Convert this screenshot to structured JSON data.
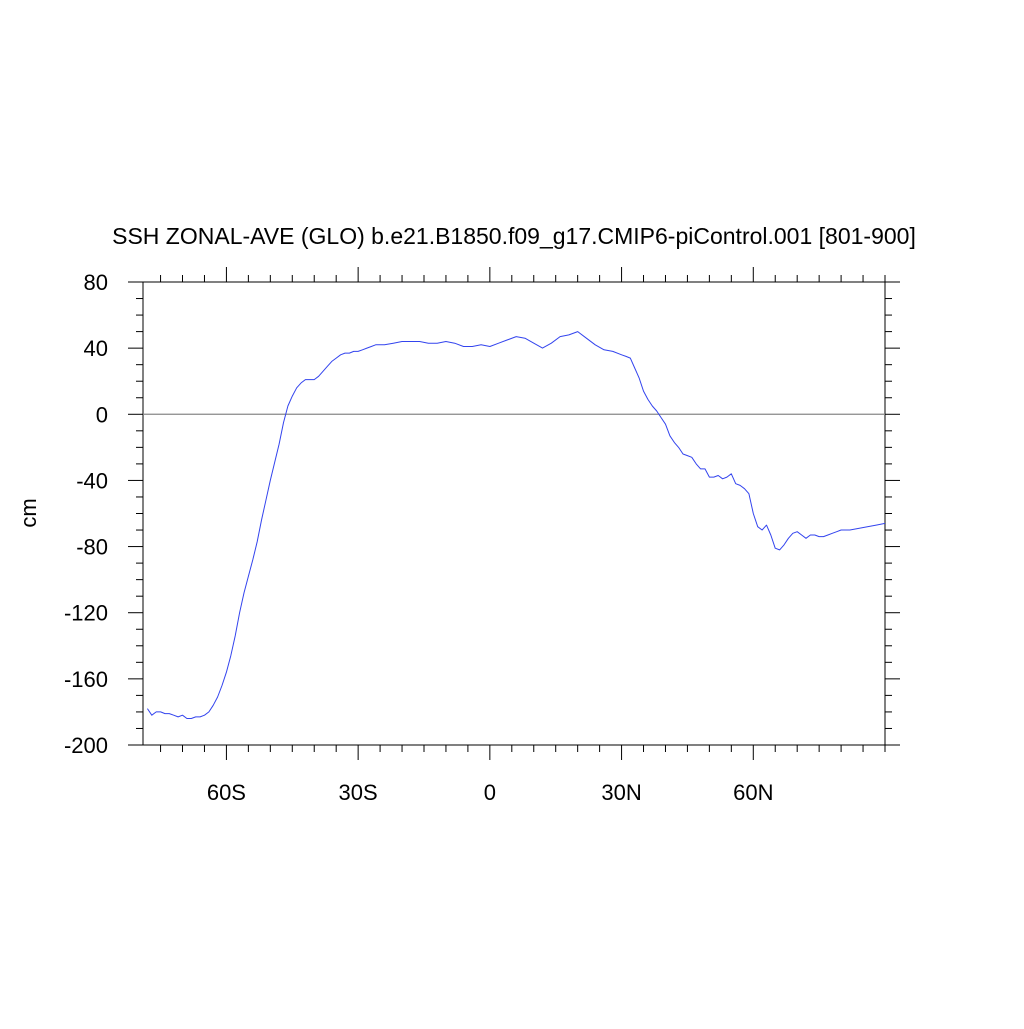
{
  "chart_data": {
    "type": "line",
    "title": "SSH ZONAL-AVE (GLO) b.e21.B1850.f09_g17.CMIP6-piControl.001 [801-900]",
    "xlabel": "",
    "ylabel": "cm",
    "xlim": [
      -79,
      90
    ],
    "ylim": [
      -200,
      80
    ],
    "x_ticks": [
      {
        "value": -60,
        "label": "60S"
      },
      {
        "value": -30,
        "label": "30S"
      },
      {
        "value": 0,
        "label": "0"
      },
      {
        "value": 30,
        "label": "30N"
      },
      {
        "value": 60,
        "label": "60N"
      }
    ],
    "y_ticks": [
      {
        "value": 80,
        "label": "80"
      },
      {
        "value": 40,
        "label": "40"
      },
      {
        "value": 0,
        "label": "0"
      },
      {
        "value": -40,
        "label": "-40"
      },
      {
        "value": -80,
        "label": "-80"
      },
      {
        "value": -120,
        "label": "-120"
      },
      {
        "value": -160,
        "label": "-160"
      },
      {
        "value": -200,
        "label": "-200"
      }
    ],
    "reference_line": {
      "y": 0,
      "color": "#888888"
    },
    "grid": false,
    "series": [
      {
        "color": "#3344ee",
        "x": [
          -78,
          -77,
          -76,
          -75,
          -74,
          -73,
          -72,
          -71,
          -70,
          -69,
          -68,
          -67,
          -66,
          -65,
          -64,
          -63,
          -62,
          -61,
          -60,
          -59,
          -58,
          -57,
          -56,
          -55,
          -54,
          -53,
          -52,
          -51,
          -50,
          -49,
          -48,
          -47,
          -46,
          -45,
          -44,
          -43,
          -42,
          -41,
          -40,
          -39,
          -38,
          -37,
          -36,
          -35,
          -34,
          -33,
          -32,
          -31,
          -30,
          -29,
          -28,
          -27,
          -26,
          -25,
          -24,
          -22,
          -20,
          -18,
          -16,
          -14,
          -12,
          -10,
          -8,
          -6,
          -4,
          -2,
          0,
          2,
          4,
          6,
          8,
          10,
          12,
          14,
          16,
          18,
          20,
          22,
          24,
          26,
          28,
          30,
          31,
          32,
          33,
          34,
          35,
          36,
          37,
          38,
          39,
          40,
          41,
          42,
          43,
          44,
          45,
          46,
          47,
          48,
          49,
          50,
          51,
          52,
          53,
          54,
          55,
          56,
          57,
          58,
          59,
          60,
          61,
          62,
          63,
          64,
          65,
          66,
          67,
          68,
          69,
          70,
          71,
          72,
          73,
          74,
          75,
          76,
          77,
          78,
          79,
          80,
          82,
          84,
          86,
          88,
          90
        ],
        "y": [
          -178,
          -182,
          -180,
          -180,
          -181,
          -181,
          -182,
          -183,
          -182,
          -184,
          -184,
          -183,
          -183,
          -182,
          -180,
          -176,
          -171,
          -164,
          -156,
          -146,
          -134,
          -120,
          -108,
          -98,
          -88,
          -77,
          -64,
          -52,
          -40,
          -29,
          -18,
          -5,
          5,
          11,
          16,
          19,
          21,
          21,
          21,
          23,
          26,
          29,
          32,
          34,
          36,
          37,
          37,
          38,
          38,
          39,
          40,
          41,
          42,
          42,
          42,
          43,
          44,
          44,
          44,
          43,
          43,
          44,
          43,
          41,
          41,
          42,
          41,
          43,
          45,
          47,
          46,
          43,
          40,
          43,
          47,
          48,
          50,
          46,
          42,
          39,
          38,
          36,
          35,
          34,
          28,
          22,
          14,
          9,
          5,
          2,
          -2,
          -6,
          -13,
          -17,
          -20,
          -24,
          -25,
          -26,
          -30,
          -33,
          -33,
          -38,
          -38,
          -37,
          -39,
          -38,
          -36,
          -42,
          -43,
          -45,
          -48,
          -60,
          -68,
          -70,
          -67,
          -73,
          -81,
          -82,
          -79,
          -75,
          -72,
          -71,
          -73,
          -75,
          -73,
          -73,
          -74,
          -74,
          -73,
          -72,
          -71,
          -70,
          -70,
          -69,
          -68,
          -67,
          -66
        ]
      }
    ]
  }
}
